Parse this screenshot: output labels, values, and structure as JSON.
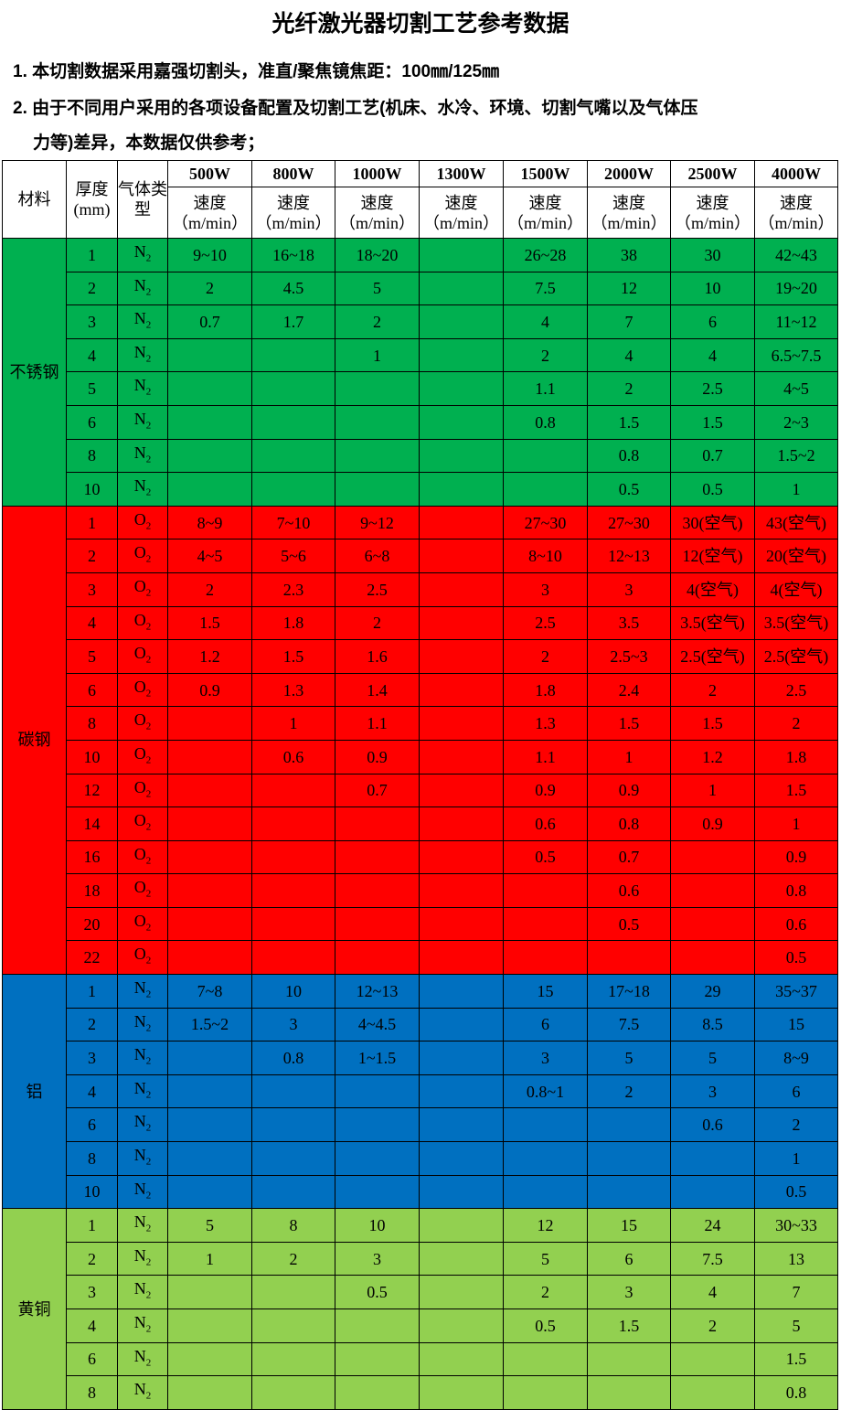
{
  "title": "光纤激光器切割工艺参考数据",
  "notes": [
    "1. 本切割数据采用嘉强切割头，准直/聚焦镜焦距：100㎜/125㎜",
    "2. 由于不同用户采用的各项设备配置及切割工艺(机床、水冷、环境、切割气嘴以及气体压",
    "力等)差异，本数据仅供参考；"
  ],
  "header": {
    "material": "材料",
    "thickness": "厚度(mm)",
    "gas": "气体类型",
    "powers": [
      "500W",
      "800W",
      "1000W",
      "1300W",
      "1500W",
      "2000W",
      "2500W",
      "4000W"
    ],
    "speed": "速度",
    "unit": "（m/min）"
  },
  "colors": {
    "stainless": "#00b050",
    "carbon": "#ff0000",
    "aluminum": "#0070c0",
    "brass": "#92d050"
  },
  "groups": [
    {
      "material": "不锈钢",
      "color": "#00b050",
      "rows": [
        {
          "t": "1",
          "gas": "N",
          "sub": "2",
          "v": [
            "9~10",
            "16~18",
            "18~20",
            "",
            "26~28",
            "38",
            "30",
            "42~43"
          ]
        },
        {
          "t": "2",
          "gas": "N",
          "sub": "2",
          "v": [
            "2",
            "4.5",
            "5",
            "",
            "7.5",
            "12",
            "10",
            "19~20"
          ]
        },
        {
          "t": "3",
          "gas": "N",
          "sub": "2",
          "v": [
            "0.7",
            "1.7",
            "2",
            "",
            "4",
            "7",
            "6",
            "11~12"
          ]
        },
        {
          "t": "4",
          "gas": "N",
          "sub": "2",
          "v": [
            "",
            "",
            "1",
            "",
            "2",
            "4",
            "4",
            "6.5~7.5"
          ]
        },
        {
          "t": "5",
          "gas": "N",
          "sub": "2",
          "v": [
            "",
            "",
            "",
            "",
            "1.1",
            "2",
            "2.5",
            "4~5"
          ]
        },
        {
          "t": "6",
          "gas": "N",
          "sub": "2",
          "v": [
            "",
            "",
            "",
            "",
            "0.8",
            "1.5",
            "1.5",
            "2~3"
          ]
        },
        {
          "t": "8",
          "gas": "N",
          "sub": "2",
          "v": [
            "",
            "",
            "",
            "",
            "",
            "0.8",
            "0.7",
            "1.5~2"
          ]
        },
        {
          "t": "10",
          "gas": "N",
          "sub": "2",
          "v": [
            "",
            "",
            "",
            "",
            "",
            "0.5",
            "0.5",
            "1"
          ]
        }
      ]
    },
    {
      "material": "碳钢",
      "color": "#ff0000",
      "rows": [
        {
          "t": "1",
          "gas": "O",
          "sub": "2",
          "v": [
            "8~9",
            "7~10",
            "9~12",
            "",
            "27~30",
            "27~30",
            "30(空气)",
            "43(空气)"
          ]
        },
        {
          "t": "2",
          "gas": "O",
          "sub": "2",
          "v": [
            "4~5",
            "5~6",
            "6~8",
            "",
            "8~10",
            "12~13",
            "12(空气)",
            "20(空气)"
          ]
        },
        {
          "t": "3",
          "gas": "O",
          "sub": "2",
          "v": [
            "2",
            "2.3",
            "2.5",
            "",
            "3",
            "3",
            "4(空气)",
            "4(空气)"
          ]
        },
        {
          "t": "4",
          "gas": "O",
          "sub": "2",
          "v": [
            "1.5",
            "1.8",
            "2",
            "",
            "2.5",
            "3.5",
            "3.5(空气)",
            "3.5(空气)"
          ]
        },
        {
          "t": "5",
          "gas": "O",
          "sub": "2",
          "v": [
            "1.2",
            "1.5",
            "1.6",
            "",
            "2",
            "2.5~3",
            "2.5(空气)",
            "2.5(空气)"
          ]
        },
        {
          "t": "6",
          "gas": "O",
          "sub": "2",
          "v": [
            "0.9",
            "1.3",
            "1.4",
            "",
            "1.8",
            "2.4",
            "2",
            "2.5"
          ]
        },
        {
          "t": "8",
          "gas": "O",
          "sub": "2",
          "v": [
            "",
            "1",
            "1.1",
            "",
            "1.3",
            "1.5",
            "1.5",
            "2"
          ]
        },
        {
          "t": "10",
          "gas": "O",
          "sub": "2",
          "v": [
            "",
            "0.6",
            "0.9",
            "",
            "1.1",
            "1",
            "1.2",
            "1.8"
          ]
        },
        {
          "t": "12",
          "gas": "O",
          "sub": "2",
          "v": [
            "",
            "",
            "0.7",
            "",
            "0.9",
            "0.9",
            "1",
            "1.5"
          ]
        },
        {
          "t": "14",
          "gas": "O",
          "sub": "2",
          "v": [
            "",
            "",
            "",
            "",
            "0.6",
            "0.8",
            "0.9",
            "1"
          ]
        },
        {
          "t": "16",
          "gas": "O",
          "sub": "2",
          "v": [
            "",
            "",
            "",
            "",
            "0.5",
            "0.7",
            "",
            "0.9"
          ]
        },
        {
          "t": "18",
          "gas": "O",
          "sub": "2",
          "v": [
            "",
            "",
            "",
            "",
            "",
            "0.6",
            "",
            "0.8"
          ]
        },
        {
          "t": "20",
          "gas": "O",
          "sub": "2",
          "v": [
            "",
            "",
            "",
            "",
            "",
            "0.5",
            "",
            "0.6"
          ]
        },
        {
          "t": "22",
          "gas": "O",
          "sub": "2",
          "v": [
            "",
            "",
            "",
            "",
            "",
            "",
            "",
            "0.5"
          ]
        }
      ]
    },
    {
      "material": "铝",
      "color": "#0070c0",
      "rows": [
        {
          "t": "1",
          "gas": "N",
          "sub": "2",
          "v": [
            "7~8",
            "10",
            "12~13",
            "",
            "15",
            "17~18",
            "29",
            "35~37"
          ]
        },
        {
          "t": "2",
          "gas": "N",
          "sub": "2",
          "v": [
            "1.5~2",
            "3",
            "4~4.5",
            "",
            "6",
            "7.5",
            "8.5",
            "15"
          ]
        },
        {
          "t": "3",
          "gas": "N",
          "sub": "2",
          "v": [
            "",
            "0.8",
            "1~1.5",
            "",
            "3",
            "5",
            "5",
            "8~9"
          ]
        },
        {
          "t": "4",
          "gas": "N",
          "sub": "2",
          "v": [
            "",
            "",
            "",
            "",
            "0.8~1",
            "2",
            "3",
            "6"
          ]
        },
        {
          "t": "6",
          "gas": "N",
          "sub": "2",
          "v": [
            "",
            "",
            "",
            "",
            "",
            "",
            "0.6",
            "2"
          ]
        },
        {
          "t": "8",
          "gas": "N",
          "sub": "2",
          "v": [
            "",
            "",
            "",
            "",
            "",
            "",
            "",
            "1"
          ]
        },
        {
          "t": "10",
          "gas": "N",
          "sub": "2",
          "v": [
            "",
            "",
            "",
            "",
            "",
            "",
            "",
            "0.5"
          ]
        }
      ]
    },
    {
      "material": "黄铜",
      "color": "#92d050",
      "rows": [
        {
          "t": "1",
          "gas": "N",
          "sub": "2",
          "v": [
            "5",
            "8",
            "10",
            "",
            "12",
            "15",
            "24",
            "30~33"
          ]
        },
        {
          "t": "2",
          "gas": "N",
          "sub": "2",
          "v": [
            "1",
            "2",
            "3",
            "",
            "5",
            "6",
            "7.5",
            "13"
          ]
        },
        {
          "t": "3",
          "gas": "N",
          "sub": "2",
          "v": [
            "",
            "",
            "0.5",
            "",
            "2",
            "3",
            "4",
            "7"
          ]
        },
        {
          "t": "4",
          "gas": "N",
          "sub": "2",
          "v": [
            "",
            "",
            "",
            "",
            "0.5",
            "1.5",
            "2",
            "5"
          ]
        },
        {
          "t": "6",
          "gas": "N",
          "sub": "2",
          "v": [
            "",
            "",
            "",
            "",
            "",
            "",
            "",
            "1.5"
          ]
        },
        {
          "t": "8",
          "gas": "N",
          "sub": "2",
          "v": [
            "",
            "",
            "",
            "",
            "",
            "",
            "",
            "0.8"
          ]
        }
      ]
    }
  ]
}
